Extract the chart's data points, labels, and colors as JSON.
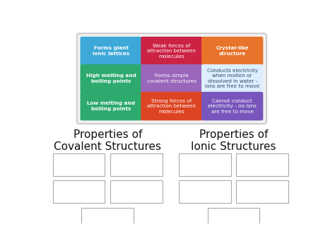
{
  "bg_color": "#ffffff",
  "grid_cells": [
    {
      "row": 0,
      "col": 0,
      "text": "Forms giant\nionic lattices",
      "bg": "#3ea8d8",
      "fg": "#ffffff",
      "bold": true
    },
    {
      "row": 0,
      "col": 1,
      "text": "Weak forces of\nattraction between\nmolecules",
      "bg": "#cc2244",
      "fg": "#ffffff",
      "bold": false
    },
    {
      "row": 0,
      "col": 2,
      "text": "Crystal-like\nstructure",
      "bg": "#e8732a",
      "fg": "#ffffff",
      "bold": true
    },
    {
      "row": 1,
      "col": 0,
      "text": "High melting and\nboiling points",
      "bg": "#2eaa6e",
      "fg": "#ffffff",
      "bold": true
    },
    {
      "row": 1,
      "col": 1,
      "text": "Forms simple\ncovalent structures",
      "bg": "#9966bb",
      "fg": "#ffffff",
      "bold": false
    },
    {
      "row": 1,
      "col": 2,
      "text": "Conducts electricity\nwhen molten or\ndissolved in water -\nions are free to move",
      "bg": "#ddeeff",
      "fg": "#334466",
      "bold": false
    },
    {
      "row": 2,
      "col": 0,
      "text": "Low melting and\nboiling points",
      "bg": "#2eaa6e",
      "fg": "#ffffff",
      "bold": true
    },
    {
      "row": 2,
      "col": 1,
      "text": "Strong forces of\nattraction between\nmolecules",
      "bg": "#dd4422",
      "fg": "#ffffff",
      "bold": false
    },
    {
      "row": 2,
      "col": 2,
      "text": "Cannot conduct\nelectricity - no ions\nare free to move",
      "bg": "#7755bb",
      "fg": "#ffffff",
      "bold": false
    }
  ],
  "section_left_title": "Properties of\nCovalent Structures",
  "section_right_title": "Properties of\nIonic Structures",
  "grid_border_color": "#cccccc",
  "grid_bg_color": "#f2f2f2",
  "empty_box_edge_color": "#aaaaaa"
}
